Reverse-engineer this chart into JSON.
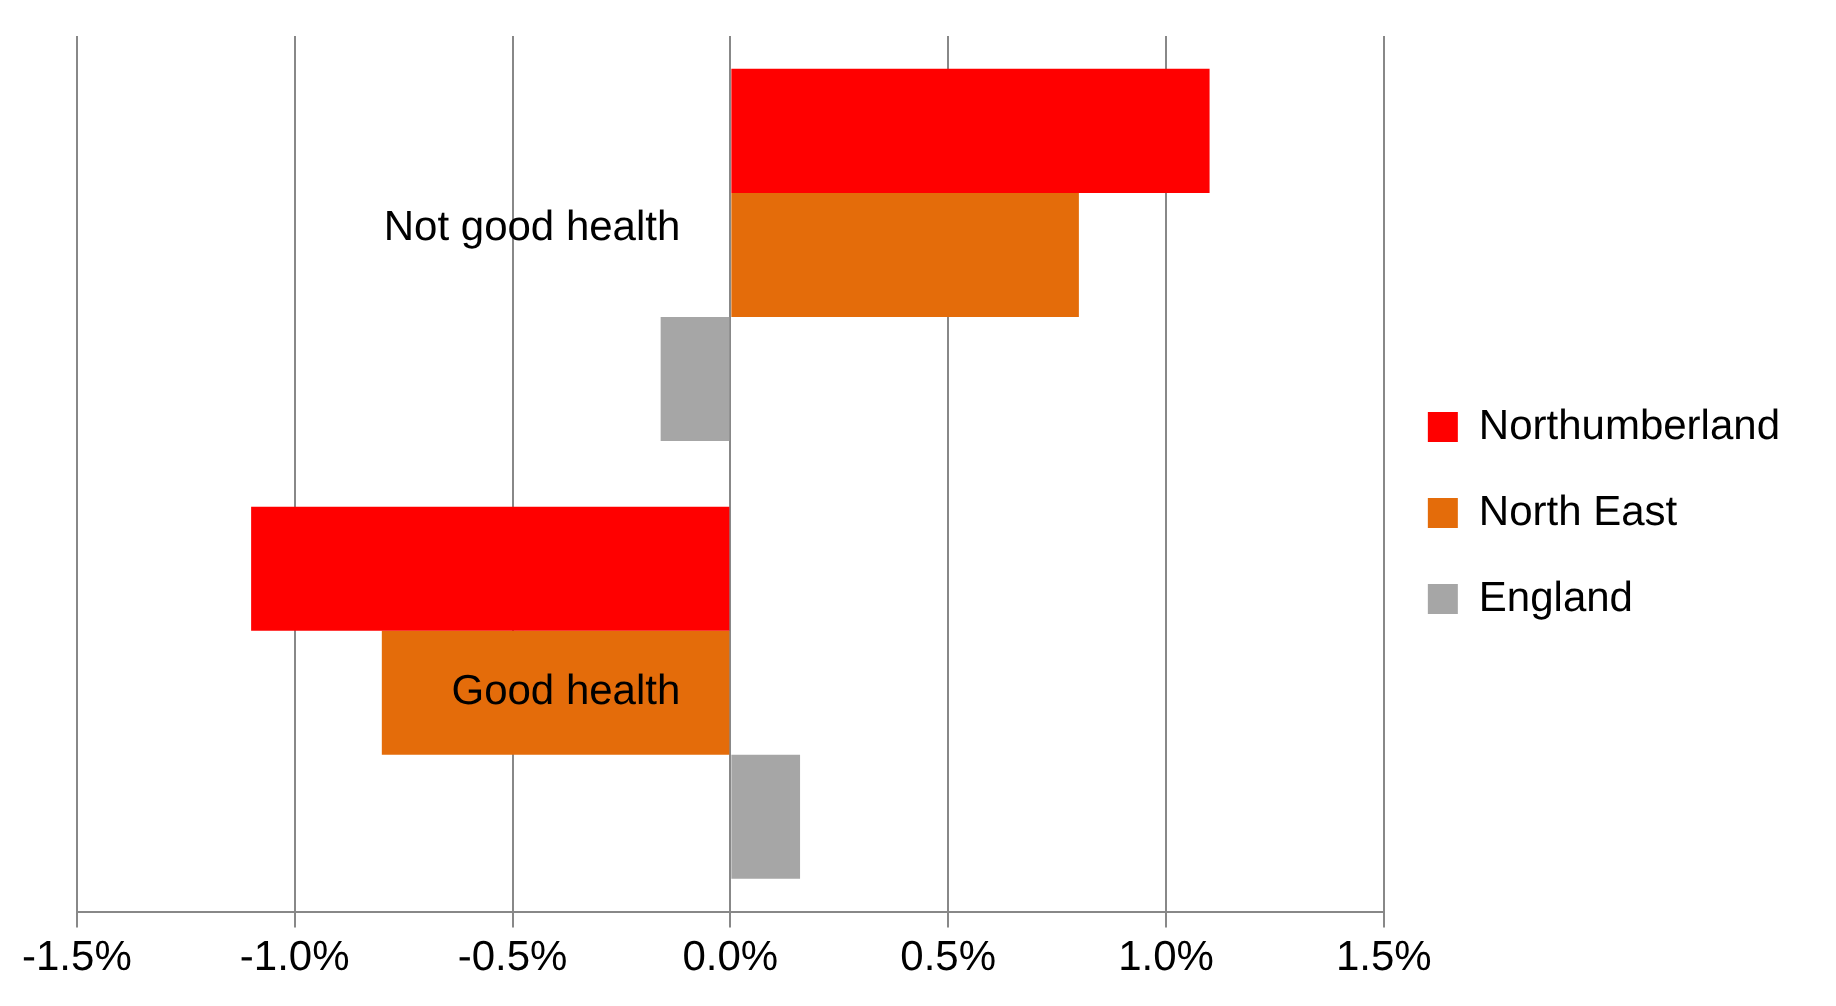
{
  "chart_data": {
    "type": "bar",
    "orientation": "horizontal",
    "categories": [
      "Not good health",
      "Good health"
    ],
    "series": [
      {
        "name": "Northumberland",
        "color": "#ff0000",
        "values": [
          1.1,
          -1.1
        ]
      },
      {
        "name": "North East",
        "color": "#e46c0a",
        "values": [
          0.8,
          -0.8
        ]
      },
      {
        "name": "England",
        "color": "#a6a6a6",
        "values": [
          -0.16,
          0.16
        ]
      }
    ],
    "xlim": [
      -1.5,
      1.5
    ],
    "xticks": [
      {
        "value": -1.5,
        "label": "-1.5%"
      },
      {
        "value": -1,
        "label": "-1.0%"
      },
      {
        "value": -0.5,
        "label": "-0.5%"
      },
      {
        "value": 0,
        "label": "0.0%"
      },
      {
        "value": 0.5,
        "label": "0.5%"
      },
      {
        "value": 1,
        "label": "1.0%"
      },
      {
        "value": 1.5,
        "label": "1.5%"
      }
    ],
    "grid": "x",
    "legend": "right"
  }
}
